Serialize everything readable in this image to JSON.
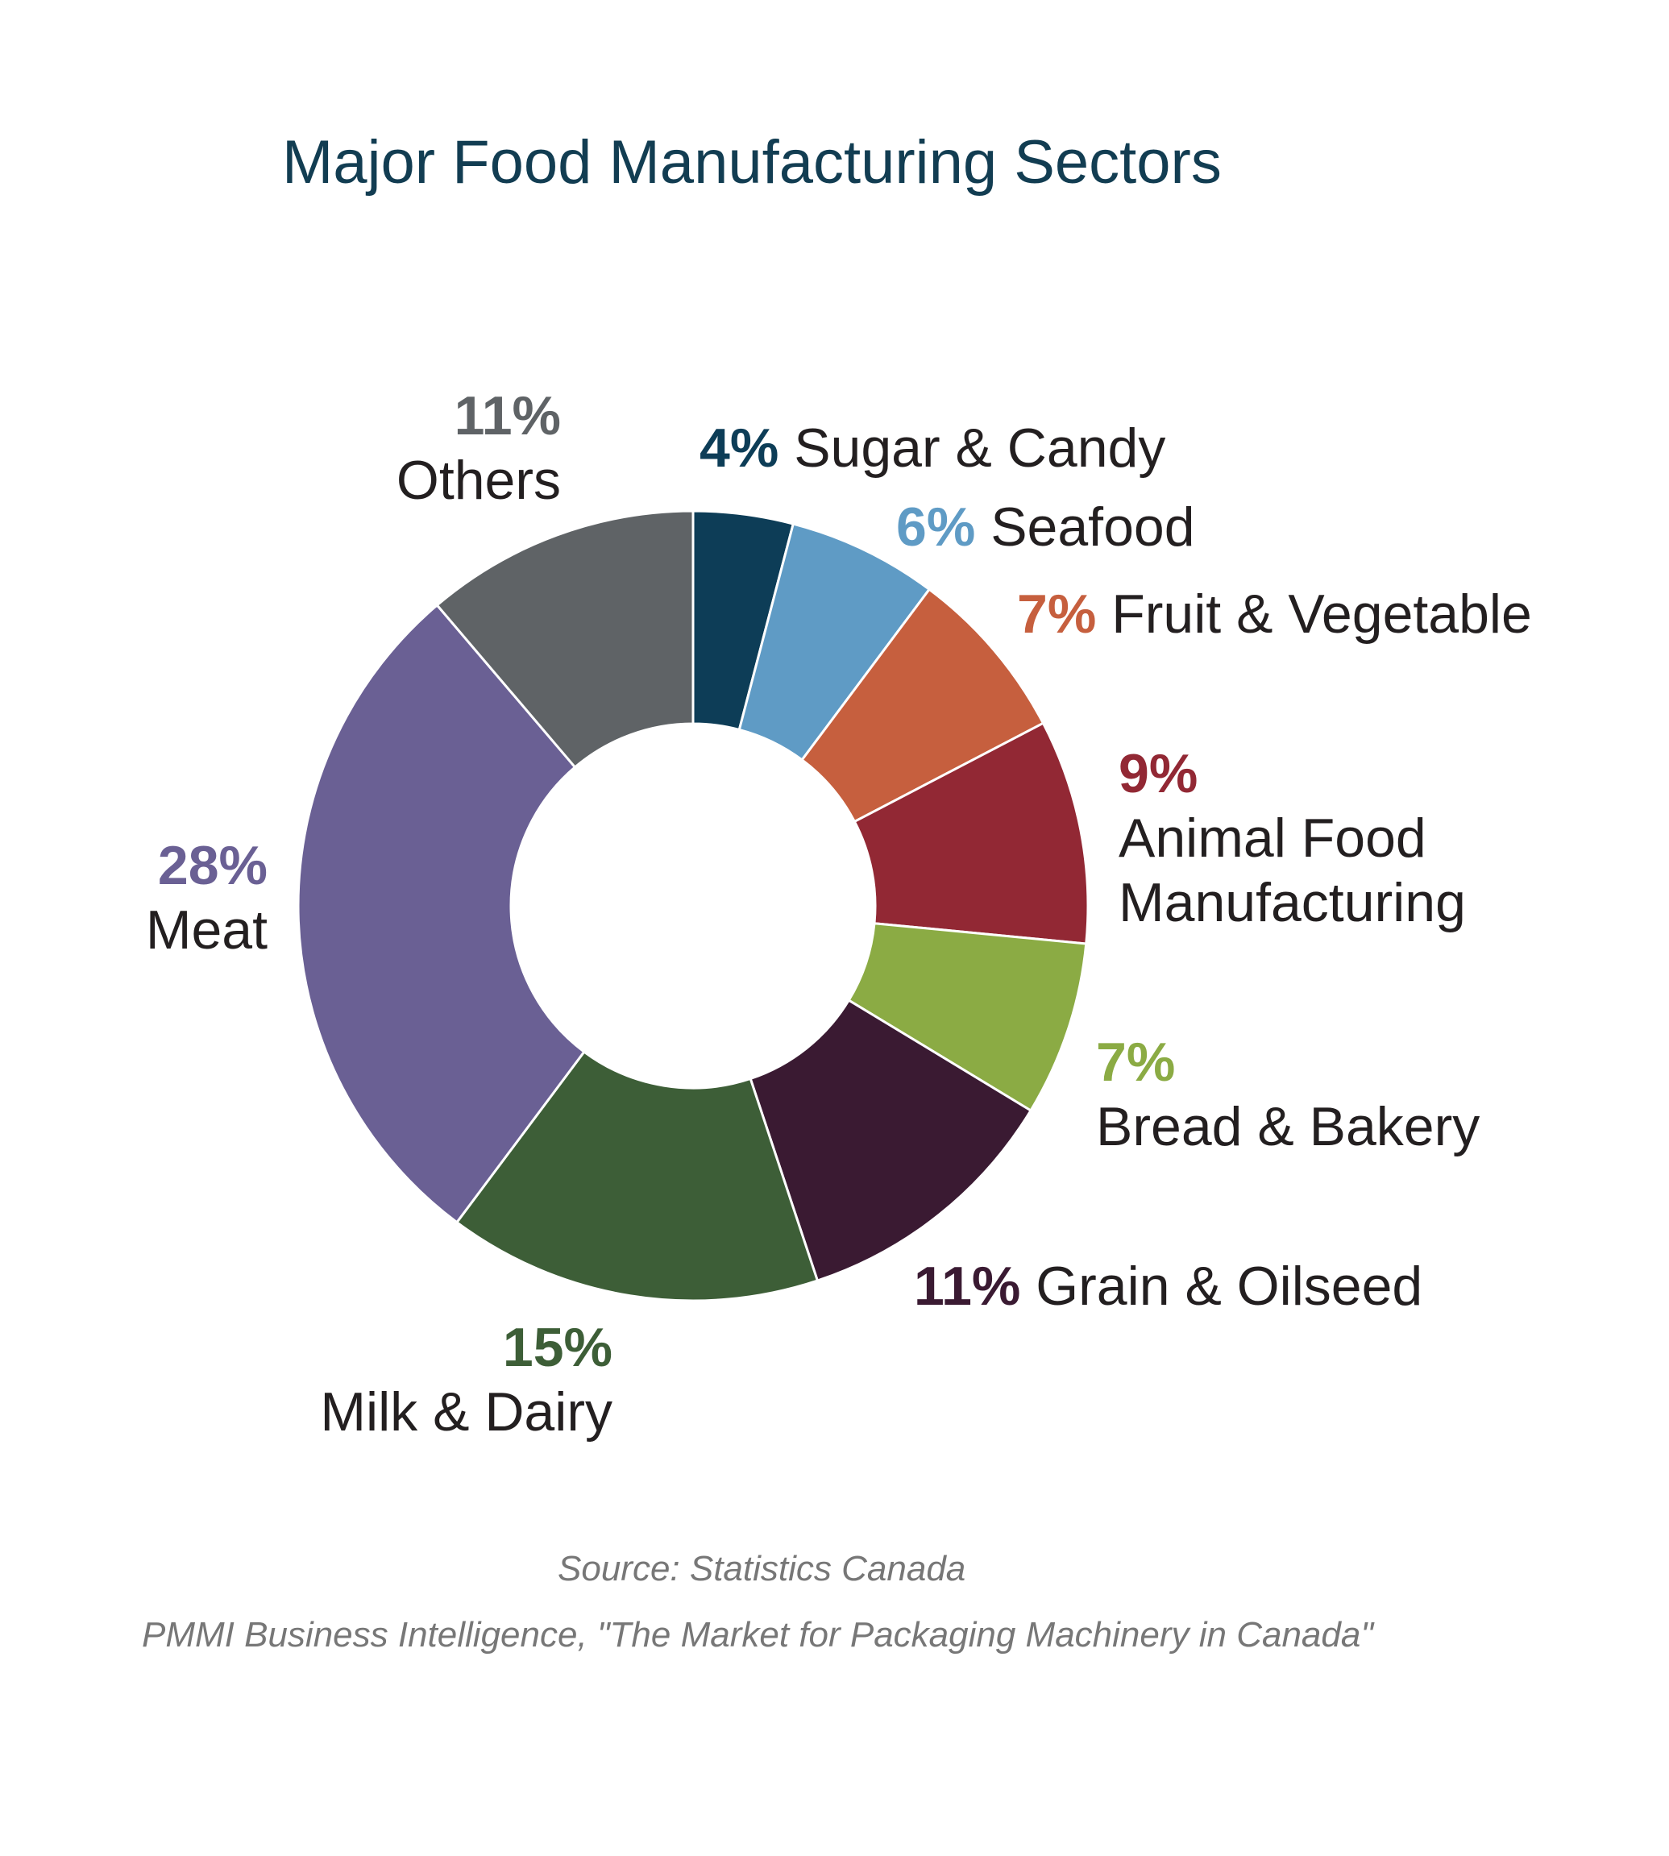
{
  "chart_data": {
    "type": "pie",
    "donut": true,
    "title": "Major Food Manufacturing Sectors",
    "title_color": "#123d52",
    "slices": [
      {
        "label": "Sugar & Candy",
        "percent_label": "4%",
        "value": 4,
        "color": "#0d3d57"
      },
      {
        "label": "Seafood",
        "percent_label": "6%",
        "value": 6,
        "color": "#5f9bc5"
      },
      {
        "label": "Fruit & Vegetable",
        "percent_label": "7%",
        "value": 7,
        "color": "#c65f3e"
      },
      {
        "label": "Animal Food",
        "label_line2": "Manufacturing",
        "percent_label": "9%",
        "value": 9,
        "color": "#922834"
      },
      {
        "label": "Bread & Bakery",
        "percent_label": "7%",
        "value": 7,
        "color": "#8bab44"
      },
      {
        "label": "Grain & Oilseed",
        "percent_label": "11%",
        "value": 11,
        "color": "#3a1a32"
      },
      {
        "label": "Milk & Dairy",
        "percent_label": "15%",
        "value": 15,
        "color": "#3d5e37"
      },
      {
        "label": "Meat",
        "percent_label": "28%",
        "value": 28,
        "color": "#6a6094"
      },
      {
        "label": "Others",
        "percent_label": "11%",
        "value": 11,
        "color": "#5f6366"
      }
    ],
    "legend": "none"
  },
  "sources": {
    "line1": "Source: Statistics Canada",
    "line2": "PMMI Business Intelligence, \"The Market for Packaging Machinery in Canada\""
  }
}
